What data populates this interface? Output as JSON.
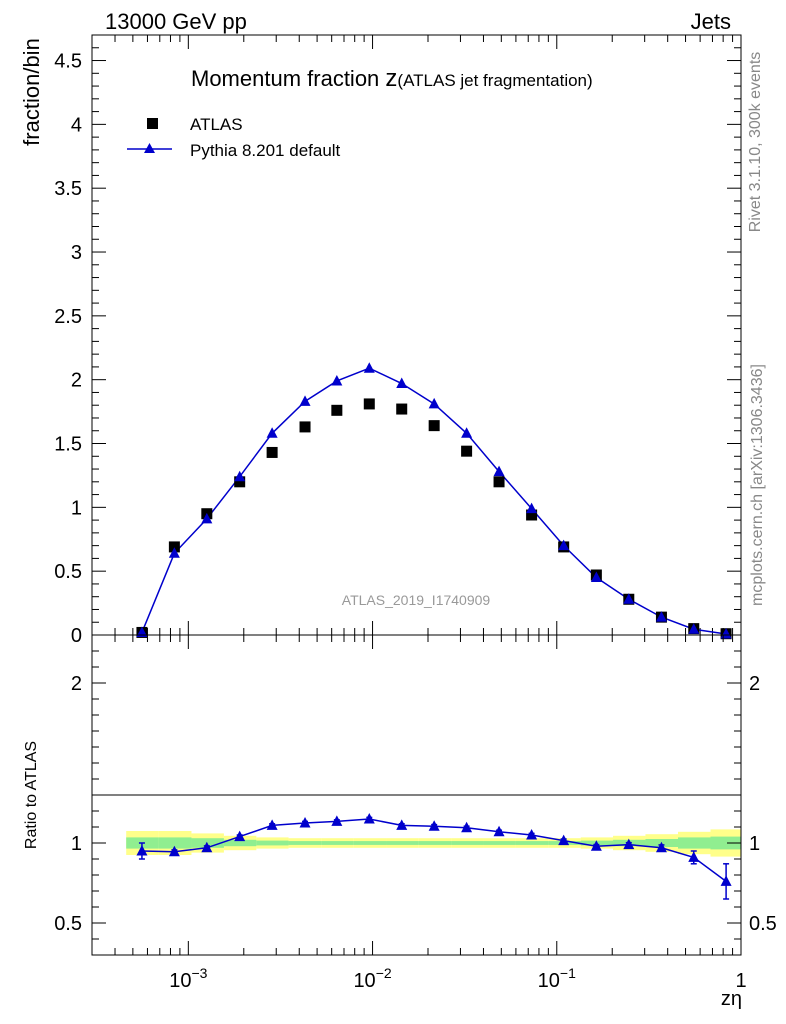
{
  "header": {
    "left": "13000 GeV pp",
    "right": "Jets"
  },
  "side_text": {
    "rivet": "Rivet 3.1.10,  300k events",
    "mcplots": "mcplots.cern.ch [arXiv:1306.3436]"
  },
  "chart_data": {
    "type": "scatter",
    "title": "Momentum fraction ",
    "title_z": "z",
    "title_suffix": "(ATLAS jet fragmentation)",
    "xlabel": "zη",
    "ylabel": "fraction/bin",
    "ratio_ylabel": "Ratio to ATLAS",
    "analysis_label": "ATLAS_2019_I1740909",
    "x_scale": "log",
    "xlim": [
      0.0003,
      1
    ],
    "ylim": [
      0,
      4.7
    ],
    "ratio_ylim": [
      0.3,
      2.3
    ],
    "legend_position": "top-left",
    "x_ticks": [
      {
        "value": 0.001,
        "base": "10",
        "exp": "−3"
      },
      {
        "value": 0.01,
        "base": "10",
        "exp": "−2"
      },
      {
        "value": 0.1,
        "base": "10",
        "exp": "−1"
      },
      {
        "value": 1,
        "base": "1",
        "exp": ""
      }
    ],
    "y_ticks": [
      {
        "value": 0,
        "label": "0"
      },
      {
        "value": 0.5,
        "label": "0.5"
      },
      {
        "value": 1,
        "label": "1"
      },
      {
        "value": 1.5,
        "label": "1.5"
      },
      {
        "value": 2,
        "label": "2"
      },
      {
        "value": 2.5,
        "label": "2.5"
      },
      {
        "value": 3,
        "label": "3"
      },
      {
        "value": 3.5,
        "label": "3.5"
      },
      {
        "value": 4,
        "label": "4"
      },
      {
        "value": 4.5,
        "label": "4.5"
      }
    ],
    "ratio_ticks": [
      {
        "value": 0.5,
        "label": "0.5"
      },
      {
        "value": 1,
        "label": "1"
      },
      {
        "value": 2,
        "label": "2"
      }
    ],
    "x": [
      0.00056,
      0.00084,
      0.00126,
      0.0019,
      0.00285,
      0.0043,
      0.0064,
      0.0096,
      0.0144,
      0.0216,
      0.0324,
      0.0486,
      0.073,
      0.109,
      0.164,
      0.246,
      0.37,
      0.554,
      0.83
    ],
    "series": [
      {
        "name": "ATLAS",
        "marker": "square",
        "color": "#000000",
        "values": [
          0.02,
          0.69,
          0.95,
          1.2,
          1.43,
          1.63,
          1.76,
          1.81,
          1.77,
          1.64,
          1.44,
          1.2,
          0.94,
          0.69,
          0.47,
          0.28,
          0.14,
          0.05,
          0.01
        ]
      },
      {
        "name": "Pythia 8.201 default",
        "marker": "triangle",
        "color": "#0000cc",
        "values": [
          0.02,
          0.64,
          0.91,
          1.24,
          1.58,
          1.83,
          1.99,
          2.09,
          1.97,
          1.81,
          1.58,
          1.28,
          0.99,
          0.7,
          0.45,
          0.28,
          0.14,
          0.045,
          0.008
        ]
      }
    ],
    "ratio": {
      "values": [
        0.95,
        0.945,
        0.97,
        1.04,
        1.11,
        1.125,
        1.135,
        1.15,
        1.11,
        1.105,
        1.095,
        1.07,
        1.05,
        1.015,
        0.98,
        0.99,
        0.97,
        0.91,
        0.76
      ],
      "errors": [
        0.05,
        0.012,
        0.012,
        0.01,
        0.01,
        0.01,
        0.01,
        0.01,
        0.01,
        0.01,
        0.01,
        0.01,
        0.01,
        0.01,
        0.01,
        0.012,
        0.018,
        0.04,
        0.11
      ]
    },
    "bands": {
      "edges": [
        0.00046,
        0.00069,
        0.00104,
        0.00156,
        0.00234,
        0.0035,
        0.0053,
        0.0079,
        0.0119,
        0.0178,
        0.0267,
        0.04,
        0.06,
        0.09,
        0.135,
        0.202,
        0.303,
        0.455,
        0.683,
        1.0
      ],
      "inner_color": "#90ee90",
      "outer_color": "#ffff8a",
      "inner": [
        0.035,
        0.035,
        0.03,
        0.02,
        0.015,
        0.012,
        0.012,
        0.012,
        0.012,
        0.012,
        0.012,
        0.012,
        0.012,
        0.012,
        0.015,
        0.02,
        0.025,
        0.035,
        0.04
      ],
      "outer": [
        0.075,
        0.075,
        0.06,
        0.045,
        0.035,
        0.03,
        0.03,
        0.03,
        0.03,
        0.03,
        0.03,
        0.03,
        0.03,
        0.03,
        0.035,
        0.045,
        0.055,
        0.07,
        0.085
      ]
    }
  }
}
